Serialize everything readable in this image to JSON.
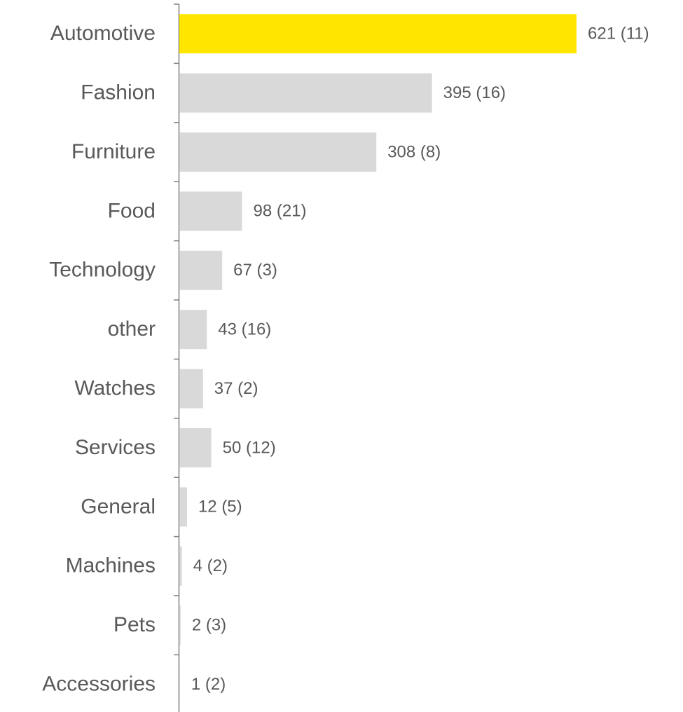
{
  "chart_data": {
    "type": "barh",
    "categories": [
      "Automotive",
      "Fashion",
      "Furniture",
      "Food",
      "Technology",
      "other",
      "Watches",
      "Services",
      "General",
      "Machines",
      "Pets",
      "Accessories"
    ],
    "values": [
      621,
      395,
      308,
      98,
      67,
      43,
      37,
      50,
      12,
      4,
      2,
      1
    ],
    "value_labels": [
      "621 (11)",
      "395 (16)",
      "308 (8)",
      "98 (21)",
      "67 (3)",
      "43 (16)",
      "37 (2)",
      "50 (12)",
      "12 (5)",
      "4 (2)",
      "2 (3)",
      "1 (2)"
    ],
    "colors": [
      "#ffe600",
      "#d9d9d9",
      "#d9d9d9",
      "#d9d9d9",
      "#d9d9d9",
      "#d9d9d9",
      "#d9d9d9",
      "#d9d9d9",
      "#d9d9d9",
      "#d9d9d9",
      "#d9d9d9",
      "#d9d9d9"
    ]
  }
}
